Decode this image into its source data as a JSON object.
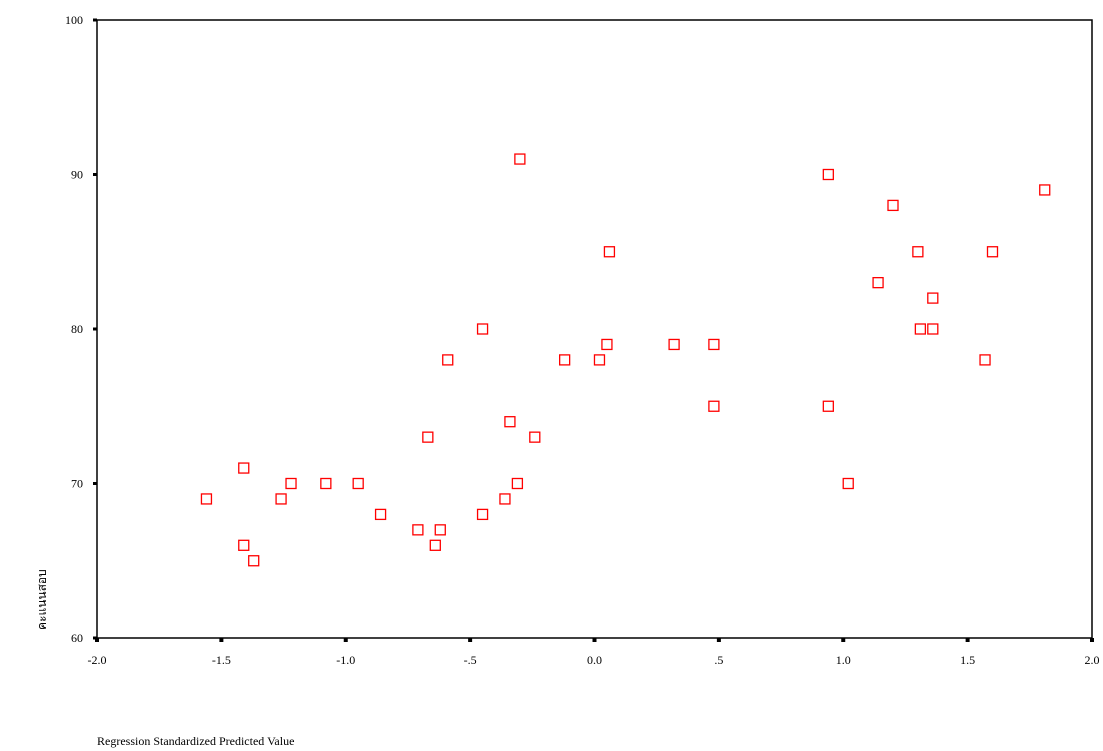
{
  "chart_data": {
    "type": "scatter",
    "xlabel": "Regression Standardized Predicted Value",
    "ylabel": "คะแนนสอบ",
    "color": "#ff0000",
    "xlim": [
      -2.0,
      2.0
    ],
    "ylim": [
      60,
      100
    ],
    "xticks": [
      {
        "value": -2.0,
        "label": "-2.0"
      },
      {
        "value": -1.5,
        "label": "-1.5"
      },
      {
        "value": -1.0,
        "label": "-1.0"
      },
      {
        "value": -0.5,
        "label": "-.5"
      },
      {
        "value": 0.0,
        "label": "0.0"
      },
      {
        "value": 0.5,
        "label": ".5"
      },
      {
        "value": 1.0,
        "label": "1.0"
      },
      {
        "value": 1.5,
        "label": "1.5"
      },
      {
        "value": 2.0,
        "label": "2.0"
      }
    ],
    "yticks": [
      60,
      70,
      80,
      90,
      100
    ],
    "x": [
      -1.56,
      -1.41,
      -1.41,
      -1.37,
      -1.26,
      -1.22,
      -1.08,
      -0.95,
      -0.86,
      -0.71,
      -0.67,
      -0.64,
      -0.62,
      -0.59,
      -0.45,
      -0.45,
      -0.36,
      -0.34,
      -0.31,
      -0.3,
      -0.24,
      -0.12,
      0.02,
      0.05,
      0.06,
      0.32,
      0.48,
      0.48,
      0.94,
      0.94,
      1.02,
      1.14,
      1.2,
      1.3,
      1.31,
      1.36,
      1.36,
      1.57,
      1.6,
      1.81
    ],
    "values": [
      69,
      71,
      66,
      65,
      69,
      70,
      70,
      70,
      68,
      67,
      73,
      66,
      67,
      78,
      80,
      68,
      69,
      74,
      70,
      91,
      73,
      78,
      78,
      79,
      85,
      79,
      79,
      75,
      90,
      75,
      70,
      83,
      88,
      85,
      80,
      82,
      80,
      78,
      85,
      89
    ]
  }
}
